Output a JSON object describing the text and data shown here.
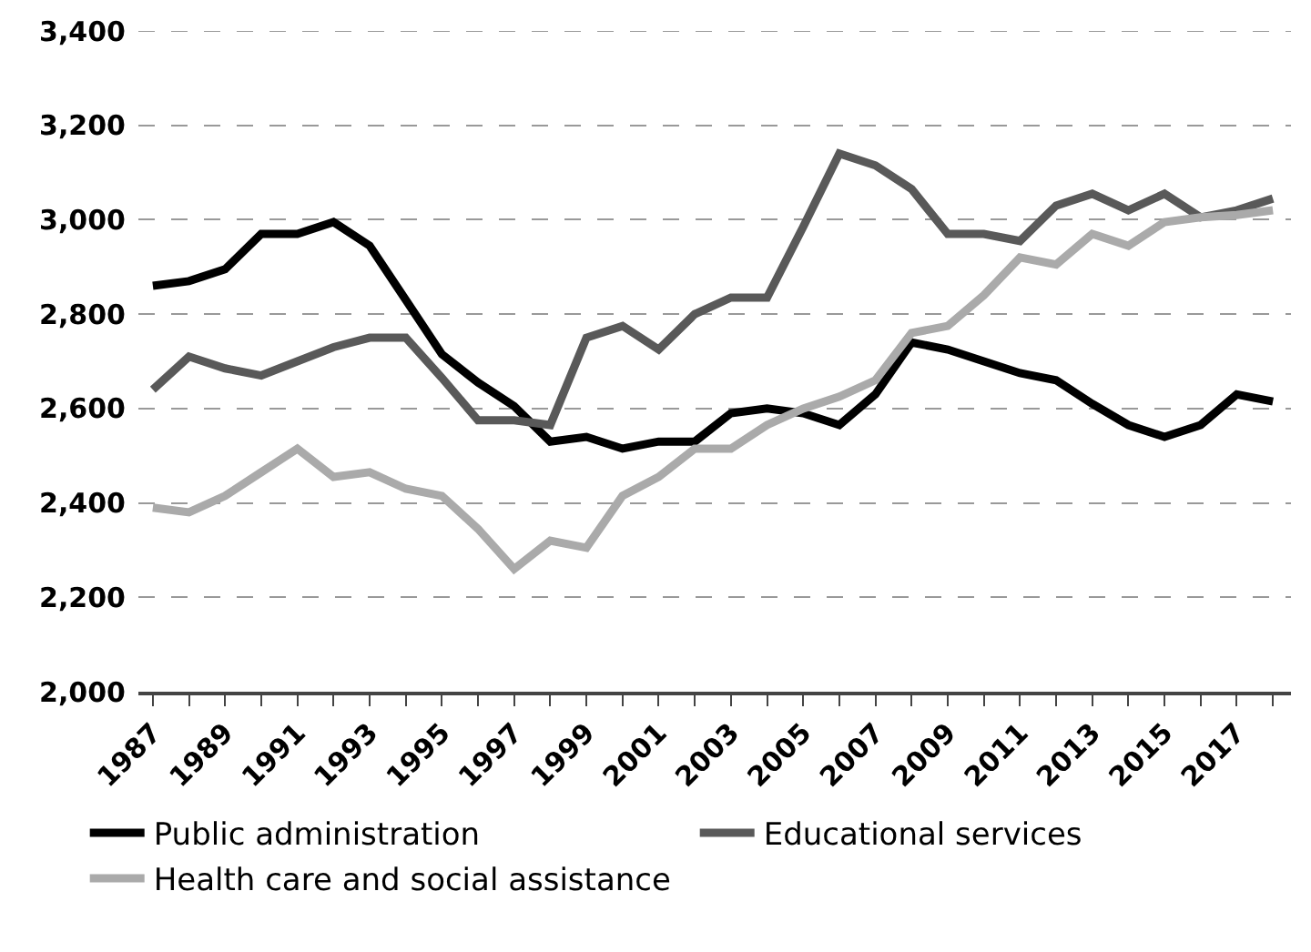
{
  "chart_data": {
    "type": "line",
    "x": [
      1987,
      1988,
      1989,
      1990,
      1991,
      1992,
      1993,
      1994,
      1995,
      1996,
      1997,
      1998,
      1999,
      2000,
      2001,
      2002,
      2003,
      2004,
      2005,
      2006,
      2007,
      2008,
      2009,
      2010,
      2011,
      2012,
      2013,
      2014,
      2015,
      2016,
      2017,
      2018
    ],
    "series": [
      {
        "name": "Public administration",
        "color": "#000000",
        "values": [
          2860,
          2870,
          2895,
          2970,
          2970,
          2995,
          2945,
          2830,
          2715,
          2655,
          2605,
          2530,
          2540,
          2515,
          2530,
          2530,
          2590,
          2600,
          2590,
          2565,
          2630,
          2740,
          2725,
          2700,
          2675,
          2660,
          2610,
          2565,
          2540,
          2565,
          2630,
          2615
        ]
      },
      {
        "name": "Educational services",
        "color": "#595959",
        "values": [
          2640,
          2710,
          2685,
          2670,
          2700,
          2730,
          2750,
          2750,
          2665,
          2575,
          2575,
          2565,
          2750,
          2775,
          2725,
          2800,
          2835,
          2835,
          2985,
          3140,
          3115,
          3065,
          2970,
          2970,
          2955,
          3030,
          3055,
          3020,
          3055,
          3005,
          3020,
          3045
        ]
      },
      {
        "name": "Health care and social assistance",
        "color": "#aaaaaa",
        "values": [
          2390,
          2380,
          2415,
          2465,
          2515,
          2455,
          2465,
          2430,
          2415,
          2345,
          2260,
          2320,
          2305,
          2415,
          2455,
          2515,
          2515,
          2565,
          2600,
          2625,
          2660,
          2760,
          2775,
          2840,
          2920,
          2905,
          2970,
          2945,
          2995,
          3005,
          3010,
          3020
        ]
      }
    ],
    "xlim": [
      1986.6,
      2018.5
    ],
    "xticks": [
      1987,
      {
        "value": 1988,
        "label": null
      },
      1989,
      {
        "value": 1990,
        "label": null
      },
      1991,
      {
        "value": 1992,
        "label": null
      },
      1993,
      {
        "value": 1994,
        "label": null
      },
      1995,
      {
        "value": 1996,
        "label": null
      },
      1997,
      {
        "value": 1998,
        "label": null
      },
      1999,
      {
        "value": 2000,
        "label": null
      },
      2001,
      {
        "value": 2002,
        "label": null
      },
      2003,
      {
        "value": 2004,
        "label": null
      },
      2005,
      {
        "value": 2006,
        "label": null
      },
      2007,
      {
        "value": 2008,
        "label": null
      },
      2009,
      {
        "value": 2010,
        "label": null
      },
      2011,
      {
        "value": 2012,
        "label": null
      },
      2013,
      {
        "value": 2014,
        "label": null
      },
      2015,
      {
        "value": 2016,
        "label": null
      },
      2017,
      {
        "value": 2018,
        "label": null
      }
    ],
    "ylim": [
      2000,
      3400
    ],
    "yticks": [
      {
        "value": 2000,
        "label": "2,000"
      },
      {
        "value": 2200,
        "label": "2,200"
      },
      {
        "value": 2400,
        "label": "2,400"
      },
      {
        "value": 2600,
        "label": "2,600"
      },
      {
        "value": 2800,
        "label": "2,800"
      },
      {
        "value": 3000,
        "label": "3,000"
      },
      {
        "value": 3200,
        "label": "3,200"
      },
      {
        "value": 3400,
        "label": "3,400"
      }
    ],
    "grid": "y",
    "legend": "bottom",
    "marker": "none",
    "line_style": "solid"
  }
}
